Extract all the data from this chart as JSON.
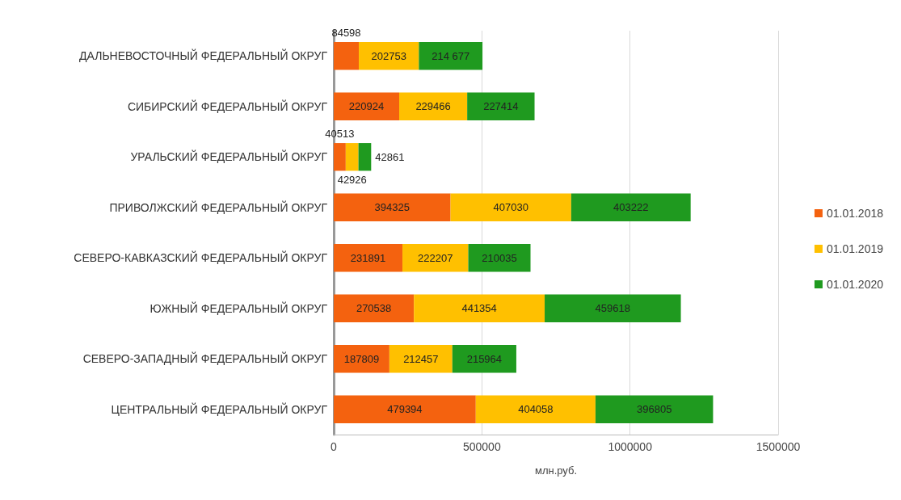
{
  "chart_data": {
    "type": "bar",
    "orientation": "horizontal",
    "stacked": true,
    "xlabel": "млн.руб.",
    "categories": [
      "ДАЛЬНЕВОСТОЧНЫЙ ФЕДЕРАЛЬНЫЙ ОКРУГ",
      "СИБИРСКИЙ ФЕДЕРАЛЬНЫЙ ОКРУГ",
      "УРАЛЬСКИЙ ФЕДЕРАЛЬНЫЙ ОКРУГ",
      "ПРИВОЛЖСКИЙ ФЕДЕРАЛЬНЫЙ ОКРУГ",
      "СЕВЕРО-КАВКАЗСКИЙ ФЕДЕРАЛЬНЫЙ ОКРУГ",
      "ЮЖНЫЙ ФЕДЕРАЛЬНЫЙ ОКРУГ",
      "СЕВЕРО-ЗАПАДНЫЙ ФЕДЕРАЛЬНЫЙ ОКРУГ",
      "ЦЕНТРАЛЬНЫЙ ФЕДЕРАЛЬНЫЙ ОКРУГ"
    ],
    "series": [
      {
        "name": "01.01.2018",
        "color": "#f4620f",
        "values": [
          84598,
          220924,
          40513,
          394325,
          231891,
          270538,
          187809,
          479394
        ],
        "value_labels": [
          "84598",
          "220924",
          "40513",
          "394325",
          "231891",
          "270538",
          "187809",
          "479394"
        ]
      },
      {
        "name": "01.01.2019",
        "color": "#ffc000",
        "values": [
          202753,
          229466,
          42926,
          407030,
          222207,
          441354,
          212457,
          404058
        ],
        "value_labels": [
          "202753",
          "229466",
          "42926",
          "407030",
          "222207",
          "441354",
          "212457",
          "404058"
        ]
      },
      {
        "name": "01.01.2020",
        "color": "#1f9a1f",
        "values": [
          214677,
          227414,
          42861,
          403222,
          210035,
          459618,
          215964,
          396805
        ],
        "value_labels": [
          "214 677",
          "227414",
          "42861",
          "403222",
          "210035",
          "459618",
          "215964",
          "396805"
        ]
      }
    ],
    "xlim": [
      0,
      1500000
    ],
    "xticks": [
      0,
      500000,
      1000000,
      1500000
    ],
    "grid": "x",
    "legend": "right"
  }
}
